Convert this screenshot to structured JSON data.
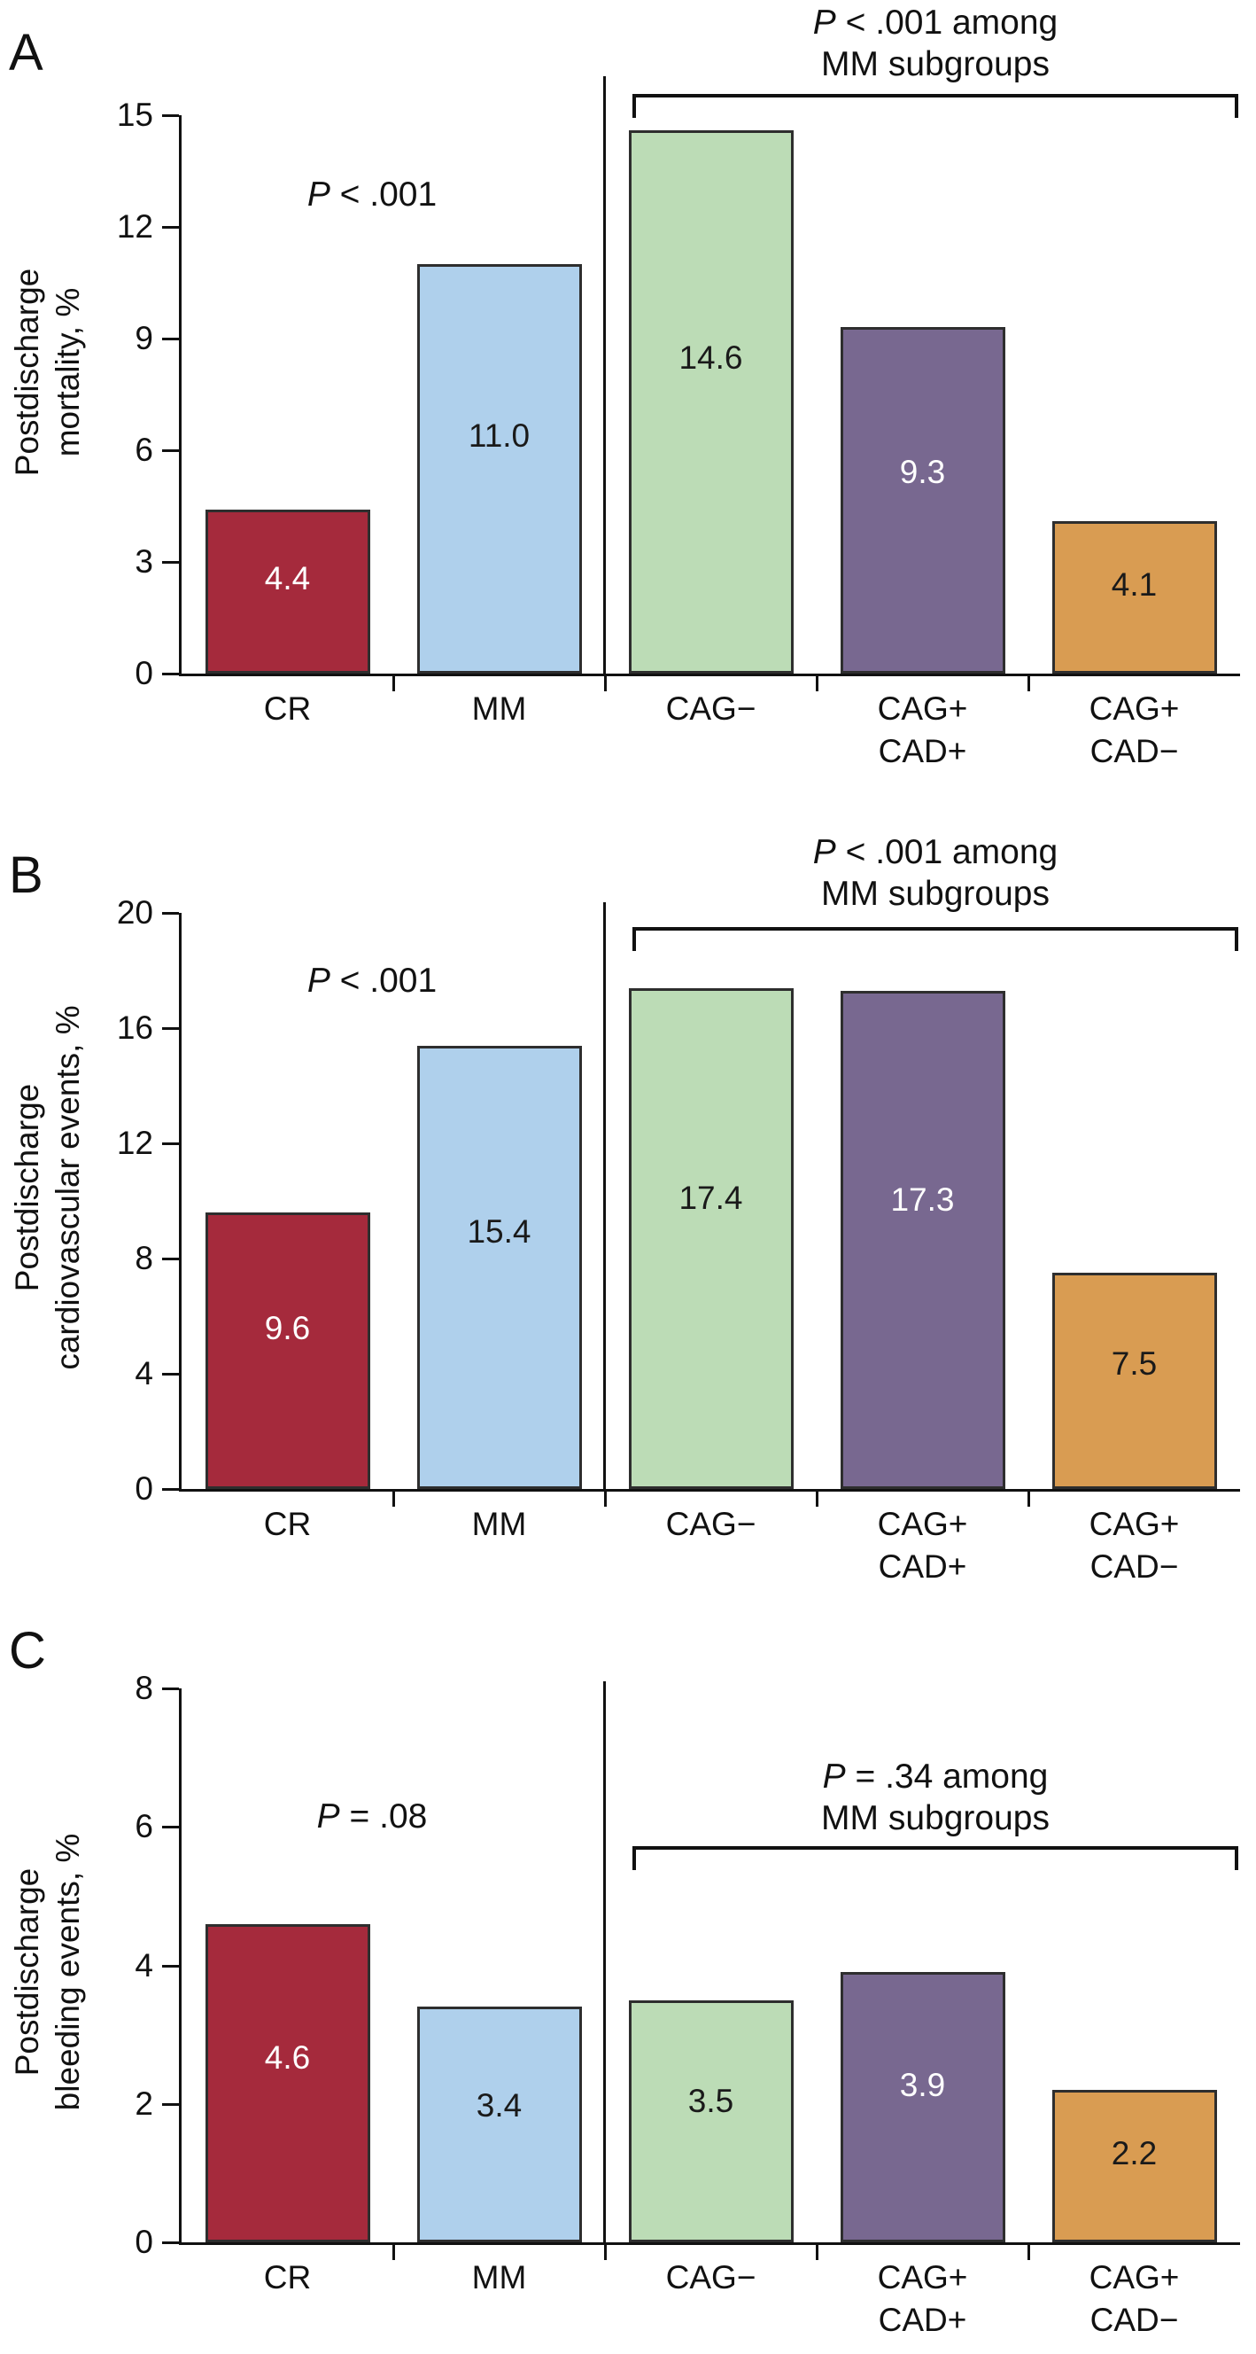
{
  "style": {
    "bar_colors": [
      "#a52a3c",
      "#afd0ec",
      "#bcdcb6",
      "#786890",
      "#d99c52"
    ],
    "bar_label_colors": [
      "#ffffff",
      "#1a1a1a",
      "#1a1a1a",
      "#ffffff",
      "#1a1a1a"
    ],
    "bar_border_color": "#2e2e2e",
    "axis_color": "#111111",
    "background": "#ffffff"
  },
  "categories": [
    {
      "slug": "cr",
      "lines": [
        "CR"
      ]
    },
    {
      "slug": "mm",
      "lines": [
        "MM"
      ]
    },
    {
      "slug": "cag-neg",
      "lines": [
        "CAG−"
      ]
    },
    {
      "slug": "cag-pos-cad-pos",
      "lines": [
        "CAG+",
        "CAD+"
      ]
    },
    {
      "slug": "cag-pos-cad-neg",
      "lines": [
        "CAG+",
        "CAD−"
      ]
    }
  ],
  "chart_data": [
    {
      "type": "bar",
      "panel_letter": "A",
      "title": "",
      "xlabel": "",
      "ylabel": "Postdischarge mortality, %",
      "ylabel_lines": [
        "Postdischarge",
        "mortality, %"
      ],
      "ylim": [
        0,
        15
      ],
      "yticks": [
        0,
        3,
        6,
        9,
        12,
        15
      ],
      "grid": false,
      "legend": "none",
      "categories": [
        "CR",
        "MM",
        "CAG−",
        "CAG+ CAD+",
        "CAG+ CAD−"
      ],
      "values": [
        4.4,
        11.0,
        14.6,
        9.3,
        4.1
      ],
      "bar_labels": [
        "4.4",
        "11.0",
        "14.6",
        "9.3",
        "4.1"
      ],
      "pairwise_p": {
        "symbol": "P",
        "rest": " < .001"
      },
      "subgroup_p": {
        "symbol": "P",
        "rest": " < .001 among",
        "line2": "MM subgroups"
      }
    },
    {
      "type": "bar",
      "panel_letter": "B",
      "title": "",
      "xlabel": "",
      "ylabel": "Postdischarge cardiovascular events, %",
      "ylabel_lines": [
        "Postdischarge",
        "cardiovascular events, %"
      ],
      "ylim": [
        0,
        20
      ],
      "yticks": [
        0,
        4,
        8,
        12,
        16,
        20
      ],
      "grid": false,
      "legend": "none",
      "categories": [
        "CR",
        "MM",
        "CAG−",
        "CAG+ CAD+",
        "CAG+ CAD−"
      ],
      "values": [
        9.6,
        15.4,
        17.4,
        17.3,
        7.5
      ],
      "bar_labels": [
        "9.6",
        "15.4",
        "17.4",
        "17.3",
        "7.5"
      ],
      "pairwise_p": {
        "symbol": "P",
        "rest": " < .001"
      },
      "subgroup_p": {
        "symbol": "P",
        "rest": " < .001 among",
        "line2": "MM subgroups"
      }
    },
    {
      "type": "bar",
      "panel_letter": "C",
      "title": "",
      "xlabel": "",
      "ylabel": "Postdischarge bleeding events, %",
      "ylabel_lines": [
        "Postdischarge",
        "bleeding events, %"
      ],
      "ylim": [
        0,
        8
      ],
      "yticks": [
        0,
        2,
        4,
        6,
        8
      ],
      "grid": false,
      "legend": "none",
      "categories": [
        "CR",
        "MM",
        "CAG−",
        "CAG+ CAD+",
        "CAG+ CAD−"
      ],
      "values": [
        4.6,
        3.4,
        3.5,
        3.9,
        2.2
      ],
      "bar_labels": [
        "4.6",
        "3.4",
        "3.5",
        "3.9",
        "2.2"
      ],
      "pairwise_p": {
        "symbol": "P",
        "rest": " = .08"
      },
      "subgroup_p": {
        "symbol": "P",
        "rest": " = .34 among",
        "line2": "MM subgroups"
      }
    }
  ]
}
